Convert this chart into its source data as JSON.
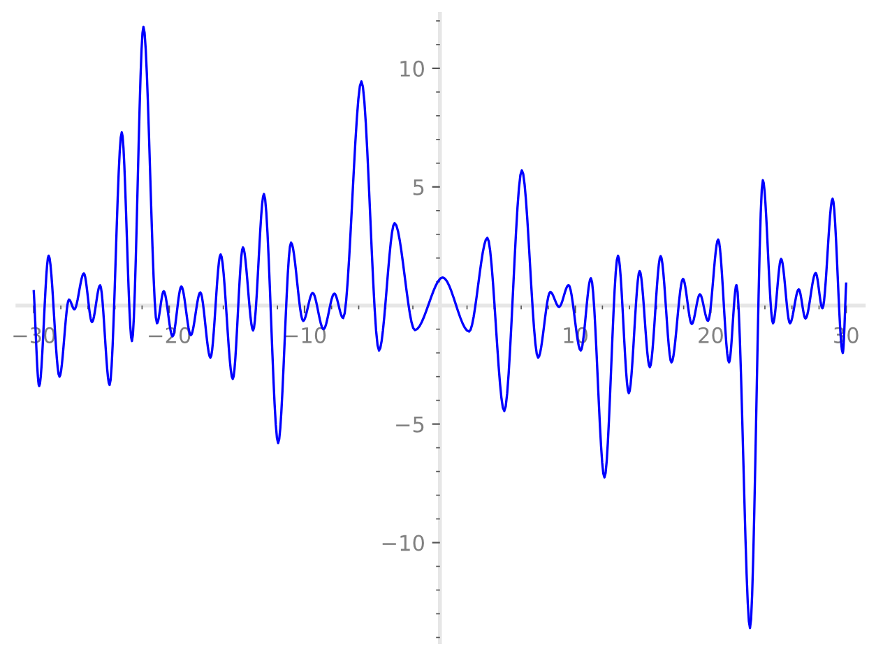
{
  "chart_data": {
    "type": "line",
    "x": [
      -30,
      -29.6,
      -28.9,
      -28.1,
      -27.4,
      -27.0,
      -26.3,
      -25.7,
      -25.1,
      -24.4,
      -23.5,
      -22.75,
      -21.9,
      -20.9,
      -20.4,
      -19.75,
      -19.1,
      -18.4,
      -17.7,
      -16.95,
      -16.2,
      -15.3,
      -14.55,
      -13.8,
      -13.0,
      -11.95,
      -11.0,
      -10.1,
      -9.4,
      -8.6,
      -7.8,
      -7.15,
      -5.8,
      -4.5,
      -3.35,
      -1.85,
      0.2,
      2.15,
      3.5,
      4.75,
      6.05,
      7.25,
      8.15,
      8.8,
      9.5,
      10.4,
      11.15,
      12.15,
      13.15,
      13.95,
      14.75,
      15.5,
      16.3,
      17.1,
      17.95,
      18.6,
      19.2,
      19.8,
      20.55,
      21.35,
      21.9,
      22.9,
      23.85,
      24.6,
      25.2,
      25.85,
      26.5,
      27.0,
      27.75,
      28.25,
      29.0,
      29.75,
      30
    ],
    "series": [
      {
        "color": "#0000ff",
        "values": [
          0.6,
          -3.4,
          2.1,
          -3.0,
          0.25,
          -0.16,
          1.35,
          -0.7,
          0.85,
          -3.35,
          7.3,
          -1.5,
          11.75,
          -0.75,
          0.6,
          -1.3,
          0.8,
          -1.25,
          0.55,
          -2.2,
          2.15,
          -3.1,
          2.45,
          -1.05,
          4.7,
          -5.8,
          2.65,
          -0.65,
          0.53,
          -1.0,
          0.5,
          -0.53,
          9.45,
          -1.9,
          3.47,
          -1.04,
          1.18,
          -1.1,
          2.85,
          -4.45,
          5.7,
          -2.2,
          0.57,
          -0.06,
          0.86,
          -1.9,
          1.15,
          -7.25,
          2.1,
          -3.7,
          1.45,
          -2.6,
          2.08,
          -2.4,
          1.12,
          -0.78,
          0.47,
          -0.65,
          2.78,
          -2.4,
          0.86,
          -13.6,
          5.28,
          -0.75,
          1.96,
          -0.75,
          0.68,
          -0.55,
          1.37,
          -0.12,
          4.5,
          -2.0,
          0.92
        ]
      }
    ],
    "xlim": [
      -31.2,
      31.3
    ],
    "ylim": [
      -14.2,
      12.3
    ],
    "xticks": [
      {
        "value": -30,
        "label": "−30"
      },
      {
        "value": -28,
        "label": null
      },
      {
        "value": -26,
        "label": null
      },
      {
        "value": -24,
        "label": null
      },
      {
        "value": -22,
        "label": null
      },
      {
        "value": -20,
        "label": "−20"
      },
      {
        "value": -18,
        "label": null
      },
      {
        "value": -16,
        "label": null
      },
      {
        "value": -14,
        "label": null
      },
      {
        "value": -12,
        "label": null
      },
      {
        "value": -10,
        "label": "−10"
      },
      {
        "value": -8,
        "label": null
      },
      {
        "value": -6,
        "label": null
      },
      {
        "value": -4,
        "label": null
      },
      {
        "value": -2,
        "label": null
      },
      {
        "value": 2,
        "label": null
      },
      {
        "value": 4,
        "label": null
      },
      {
        "value": 6,
        "label": null
      },
      {
        "value": 8,
        "label": null
      },
      10,
      {
        "value": 12,
        "label": null
      },
      {
        "value": 14,
        "label": null
      },
      {
        "value": 16,
        "label": null
      },
      {
        "value": 18,
        "label": null
      },
      20,
      {
        "value": 22,
        "label": null
      },
      {
        "value": 24,
        "label": null
      },
      {
        "value": 26,
        "label": null
      },
      {
        "value": 28,
        "label": null
      },
      30
    ],
    "yticks": [
      {
        "value": -14,
        "label": null
      },
      {
        "value": -13,
        "label": null
      },
      {
        "value": -12,
        "label": null
      },
      {
        "value": -11,
        "label": null
      },
      {
        "value": -10,
        "label": "−10"
      },
      {
        "value": -9,
        "label": null
      },
      {
        "value": -8,
        "label": null
      },
      {
        "value": -7,
        "label": null
      },
      {
        "value": -6,
        "label": null
      },
      {
        "value": -5,
        "label": "−5"
      },
      {
        "value": -4,
        "label": null
      },
      {
        "value": -3,
        "label": null
      },
      {
        "value": -2,
        "label": null
      },
      {
        "value": -1,
        "label": null
      },
      {
        "value": 1,
        "label": null
      },
      {
        "value": 2,
        "label": null
      },
      {
        "value": 3,
        "label": null
      },
      {
        "value": 4,
        "label": null
      },
      5,
      {
        "value": 6,
        "label": null
      },
      {
        "value": 7,
        "label": null
      },
      {
        "value": 8,
        "label": null
      },
      {
        "value": 9,
        "label": null
      },
      10,
      {
        "value": 11,
        "label": null
      },
      {
        "value": 12,
        "label": null
      }
    ],
    "grid": false,
    "marker": "none",
    "line_style": "solid"
  }
}
